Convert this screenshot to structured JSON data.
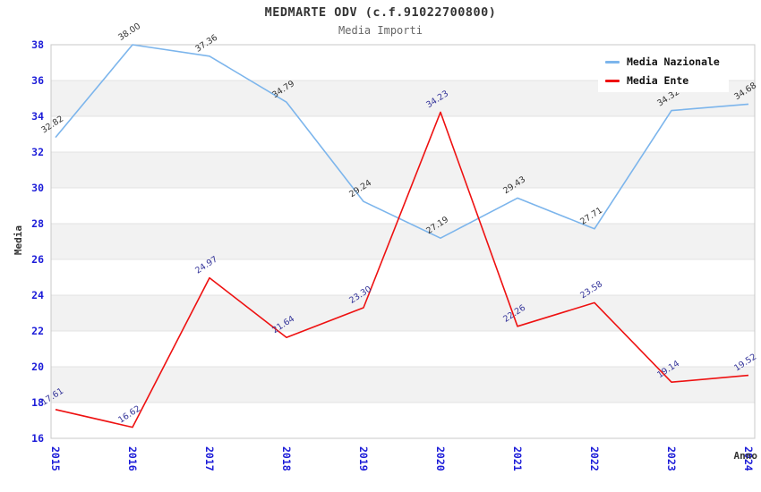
{
  "header": {
    "title": "MEDMARTE ODV (c.f.91022700800)",
    "subtitle": "Media Importi"
  },
  "legend": {
    "items": [
      {
        "label": "Media Nazionale",
        "color": "#7cb5ec"
      },
      {
        "label": "Media Ente",
        "color": "#ee1111"
      }
    ]
  },
  "chart_data": {
    "type": "line",
    "title": "MEDMARTE ODV (c.f.91022700800)",
    "subtitle": "Media Importi",
    "xlabel": "Anno",
    "ylabel": "Media",
    "x": [
      2015,
      2016,
      2017,
      2018,
      2019,
      2020,
      2021,
      2022,
      2023,
      2024
    ],
    "series": [
      {
        "name": "Media Nazionale",
        "color": "#7cb5ec",
        "label_color": "#333333",
        "values": [
          32.82,
          38.0,
          37.36,
          34.79,
          29.24,
          27.19,
          29.43,
          27.71,
          34.32,
          34.68
        ],
        "point_labels": [
          "32.82",
          "38.00",
          "37.36",
          "34.79",
          "29.24",
          "27.19",
          "29.43",
          "27.71",
          "34.32",
          "34.68"
        ]
      },
      {
        "name": "Media Ente",
        "color": "#ee1111",
        "label_color": "#333399",
        "values": [
          17.61,
          16.62,
          24.97,
          21.64,
          23.3,
          34.23,
          22.26,
          23.58,
          19.14,
          19.52
        ],
        "point_labels": [
          "17.61",
          "16.62",
          "24.97",
          "21.64",
          "23.30",
          "34.23",
          "22.26",
          "23.58",
          "19.14",
          "19.52"
        ]
      }
    ],
    "ylim": [
      16,
      38
    ],
    "ytick_step": 2,
    "yticks": [
      16,
      18,
      20,
      22,
      24,
      26,
      28,
      30,
      32,
      34,
      36,
      38
    ],
    "grid": "horizontal-bands",
    "band_colors": [
      "#ffffff",
      "#f2f2f2"
    ],
    "gridline_color": "#e3e3e3",
    "plot_border_color": "#c8c8c8",
    "tick_label_color": "#1c1cd8",
    "legend_position": "top-right"
  }
}
